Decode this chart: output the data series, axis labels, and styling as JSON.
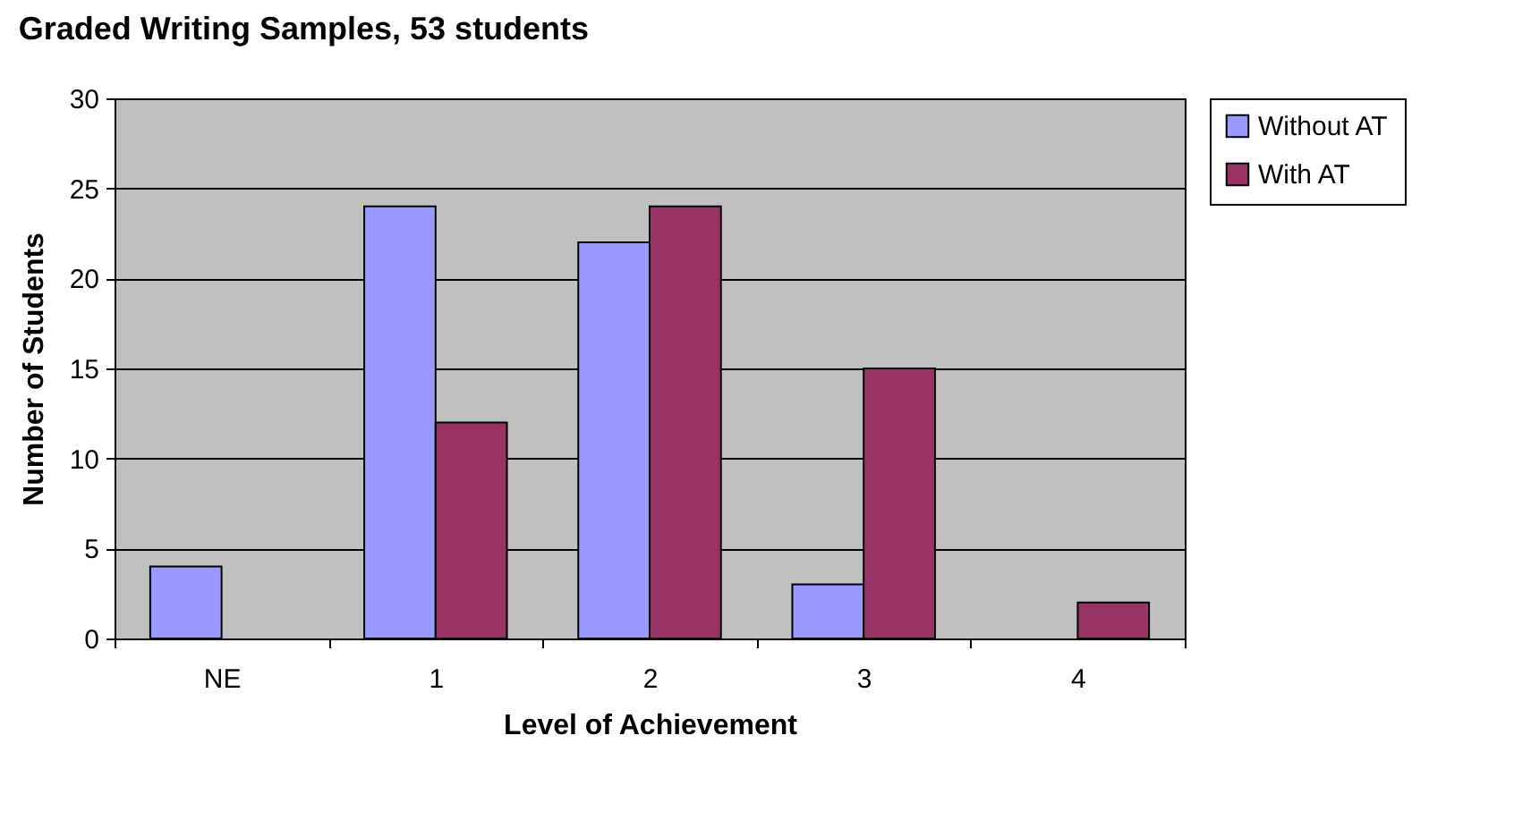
{
  "chart_data": {
    "type": "bar",
    "title": "Graded Writing Samples, 53 students",
    "xlabel": "Level of Achievement",
    "ylabel": "Number of Students",
    "categories": [
      "NE",
      "1",
      "2",
      "3",
      "4"
    ],
    "series": [
      {
        "name": "Without AT",
        "color": "#9999ff",
        "values": [
          4,
          24,
          22,
          3,
          null
        ]
      },
      {
        "name": "With AT",
        "color": "#993366",
        "values": [
          null,
          12,
          24,
          15,
          2
        ]
      }
    ],
    "ylim": [
      0,
      30
    ],
    "yticks": [
      0,
      5,
      10,
      15,
      20,
      25,
      30
    ],
    "grid": "y",
    "legend": "right"
  }
}
